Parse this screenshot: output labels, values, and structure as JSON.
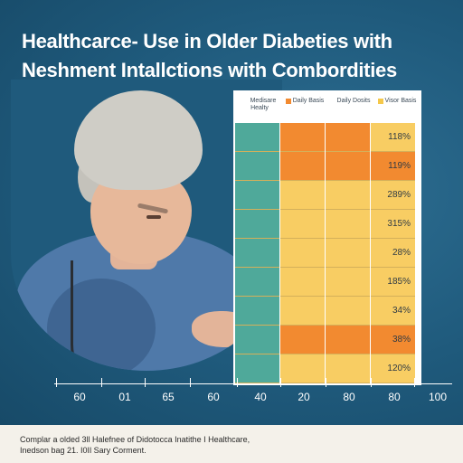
{
  "title": {
    "line1": "Healthcarce- Use in Older Diabeties with",
    "line2": "Neshment Intallctions with Combordities"
  },
  "legend": [
    {
      "label": "Medisare Healty",
      "color": "#ffffff"
    },
    {
      "label": "Daily Basis",
      "color": "#f28a30"
    },
    {
      "label": "Daily Dosits",
      "color": "#ffffff"
    },
    {
      "label": "Visor Basis",
      "color": "#f5c84a"
    }
  ],
  "colors": {
    "teal": "#4fa99a",
    "orange": "#f28a30",
    "yellow": "#f8cd63",
    "background": "#1f5a7c"
  },
  "rows": [
    {
      "label": "118%",
      "c1": "teal",
      "c2": "orange",
      "c3": "orange",
      "c4": "yellow"
    },
    {
      "label": "119%",
      "c1": "teal",
      "c2": "orange",
      "c3": "orange",
      "c4": "orange"
    },
    {
      "label": "289%",
      "c1": "teal",
      "c2": "yellow",
      "c3": "yellow",
      "c4": "yellow"
    },
    {
      "label": "315%",
      "c1": "teal",
      "c2": "yellow",
      "c3": "yellow",
      "c4": "yellow"
    },
    {
      "label": "28%",
      "c1": "teal",
      "c2": "yellow",
      "c3": "yellow",
      "c4": "yellow"
    },
    {
      "label": "185%",
      "c1": "teal",
      "c2": "yellow",
      "c3": "yellow",
      "c4": "yellow"
    },
    {
      "label": "34%",
      "c1": "teal",
      "c2": "yellow",
      "c3": "yellow",
      "c4": "yellow"
    },
    {
      "label": "38%",
      "c1": "teal",
      "c2": "orange",
      "c3": "orange",
      "c4": "orange"
    },
    {
      "label": "120%",
      "c1": "teal",
      "c2": "yellow",
      "c3": "yellow",
      "c4": "yellow"
    }
  ],
  "axis": {
    "ticks": [
      "60",
      "01",
      "65",
      "60",
      "40",
      "20",
      "80",
      "80",
      "100"
    ]
  },
  "caption": {
    "line1": "Complar a olded 3ll Halefnee of Didotocca Inatithe I Healthcare,",
    "line2": "Inedson bag 21. I0Il Sary Corment."
  }
}
